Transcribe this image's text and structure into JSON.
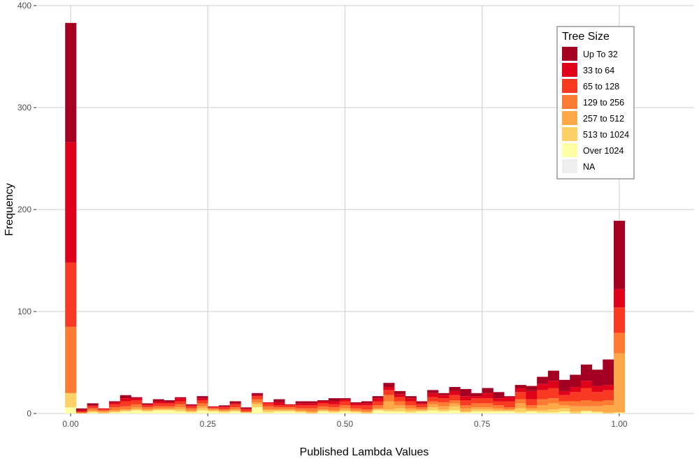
{
  "chart_data": {
    "type": "bar",
    "subtype": "stacked-histogram",
    "title": "",
    "xlabel": "Published Lambda Values",
    "ylabel": "Frequency",
    "xlim": [
      -0.0625,
      1.1365
    ],
    "ylim": [
      0,
      400
    ],
    "xticks": [
      0.0,
      0.25,
      0.5,
      0.75,
      1.0
    ],
    "xtick_labels": [
      "0.00",
      "0.25",
      "0.50",
      "0.75",
      "1.00"
    ],
    "yticks": [
      0,
      100,
      200,
      300,
      400
    ],
    "ytick_labels": [
      "0",
      "100",
      "200",
      "300",
      "400"
    ],
    "grid": true,
    "bin_width": 0.02,
    "x": [
      0.0,
      0.02,
      0.04,
      0.06,
      0.08,
      0.1,
      0.12,
      0.14,
      0.16,
      0.18,
      0.2,
      0.22,
      0.24,
      0.26,
      0.28,
      0.3,
      0.32,
      0.34,
      0.36,
      0.38,
      0.4,
      0.42,
      0.44,
      0.46,
      0.48,
      0.5,
      0.52,
      0.54,
      0.56,
      0.58,
      0.6,
      0.62,
      0.64,
      0.66,
      0.68,
      0.7,
      0.72,
      0.74,
      0.76,
      0.78,
      0.8,
      0.82,
      0.84,
      0.86,
      0.88,
      0.9,
      0.92,
      0.94,
      0.96,
      0.98,
      1.0
    ],
    "legend": {
      "title": "Tree Size",
      "position": "top-right"
    },
    "series": [
      {
        "name": "Over 1024",
        "color": "#FFFFA6",
        "values": [
          6,
          0,
          1,
          0,
          1,
          2,
          3,
          2,
          3,
          3,
          2,
          1,
          3,
          2,
          1,
          2,
          1,
          6,
          1,
          2,
          2,
          1,
          0,
          2,
          1,
          2,
          1,
          0,
          3,
          2,
          2,
          1,
          2,
          3,
          2,
          3,
          1,
          2,
          2,
          2,
          2,
          1,
          2,
          1,
          1,
          2,
          0,
          2,
          1,
          0,
          1
        ]
      },
      {
        "name": "513 to 1024",
        "color": "#FED166",
        "values": [
          14,
          0,
          1,
          1,
          1,
          1,
          1,
          1,
          1,
          1,
          2,
          1,
          2,
          1,
          1,
          1,
          0,
          3,
          2,
          1,
          1,
          1,
          1,
          1,
          1,
          1,
          1,
          1,
          1,
          2,
          3,
          2,
          1,
          3,
          2,
          4,
          1,
          2,
          2,
          1,
          1,
          4,
          1,
          2,
          3,
          3,
          2,
          1,
          1,
          1,
          0
        ]
      },
      {
        "name": "257 to 512",
        "color": "#FEA849",
        "values": [
          0,
          1,
          1,
          1,
          1,
          1,
          2,
          1,
          1,
          1,
          2,
          1,
          2,
          1,
          1,
          1,
          0,
          2,
          1,
          1,
          1,
          1,
          1,
          1,
          1,
          2,
          1,
          1,
          1,
          8,
          3,
          2,
          1,
          3,
          3,
          3,
          3,
          2,
          2,
          2,
          1,
          5,
          2,
          5,
          6,
          3,
          5,
          4,
          5,
          7,
          58
        ]
      },
      {
        "name": "129 to 256",
        "color": "#FD7B33",
        "values": [
          65,
          0,
          2,
          1,
          3,
          3,
          3,
          2,
          2,
          2,
          3,
          2,
          3,
          1,
          1,
          2,
          1,
          3,
          3,
          2,
          2,
          2,
          3,
          3,
          3,
          3,
          2,
          2,
          3,
          6,
          4,
          3,
          2,
          3,
          4,
          3,
          3,
          4,
          4,
          3,
          2,
          4,
          3,
          6,
          5,
          4,
          5,
          6,
          5,
          5,
          20
        ]
      },
      {
        "name": "65 to 128",
        "color": "#F83A22",
        "values": [
          63,
          1,
          2,
          1,
          3,
          5,
          4,
          2,
          3,
          3,
          3,
          2,
          3,
          1,
          2,
          3,
          2,
          3,
          3,
          2,
          2,
          3,
          3,
          3,
          3,
          4,
          3,
          4,
          4,
          5,
          4,
          4,
          3,
          4,
          4,
          5,
          5,
          5,
          5,
          4,
          6,
          7,
          6,
          9,
          10,
          6,
          9,
          12,
          9,
          10,
          25
        ]
      },
      {
        "name": "33 to 64",
        "color": "#E0011B",
        "values": [
          118,
          1,
          1,
          1,
          2,
          3,
          2,
          1,
          2,
          1,
          3,
          1,
          2,
          1,
          1,
          1,
          1,
          1,
          1,
          3,
          1,
          2,
          2,
          2,
          3,
          2,
          2,
          2,
          3,
          3,
          3,
          3,
          1,
          4,
          3,
          4,
          4,
          2,
          5,
          3,
          4,
          4,
          8,
          6,
          7,
          4,
          5,
          7,
          6,
          5,
          18
        ]
      },
      {
        "name": "Up To 32",
        "color": "#A30022",
        "values": [
          117,
          2,
          2,
          0,
          1,
          3,
          1,
          1,
          2,
          2,
          1,
          1,
          2,
          0,
          1,
          2,
          1,
          2,
          0,
          3,
          0,
          2,
          2,
          1,
          3,
          1,
          1,
          2,
          2,
          4,
          3,
          2,
          2,
          3,
          2,
          4,
          7,
          3,
          5,
          6,
          1,
          3,
          5,
          7,
          10,
          11,
          12,
          16,
          16,
          25,
          67
        ]
      },
      {
        "name": "NA",
        "color": "#EEEEEE",
        "values": [
          0,
          0,
          0,
          0,
          0,
          0,
          0,
          0,
          0,
          0,
          0,
          0,
          0,
          0,
          0,
          0,
          0,
          0,
          0,
          0,
          0,
          0,
          0,
          0,
          0,
          0,
          0,
          0,
          0,
          0,
          0,
          0,
          0,
          0,
          0,
          0,
          0,
          0,
          0,
          0,
          0,
          0,
          0,
          0,
          0,
          0,
          0,
          0,
          0,
          0,
          0
        ]
      }
    ],
    "legend_order": [
      "Up To 32",
      "33 to 64",
      "65 to 128",
      "129 to 256",
      "257 to 512",
      "513 to 1024",
      "Over 1024",
      "NA"
    ]
  }
}
